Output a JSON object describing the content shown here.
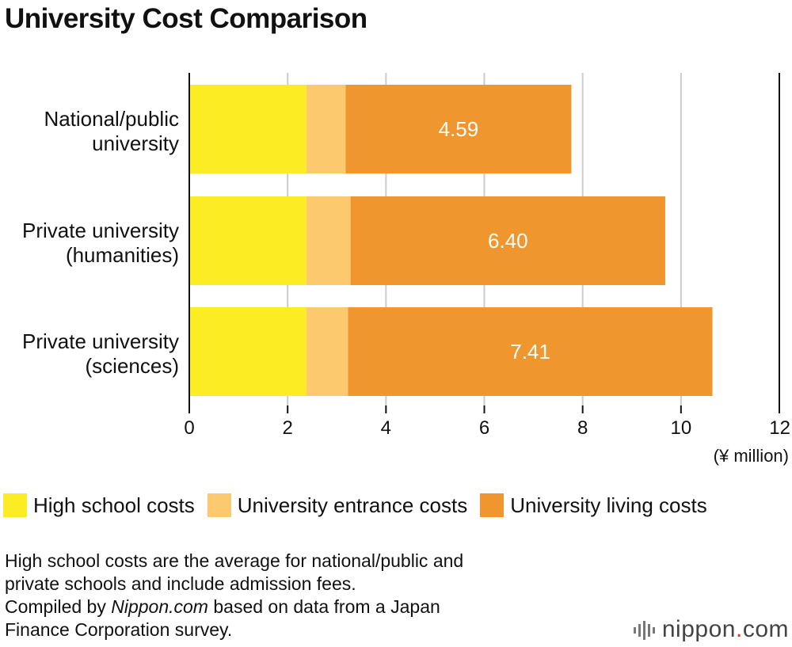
{
  "title": "University Cost Comparison",
  "chart_data": {
    "type": "bar",
    "orientation": "horizontal",
    "stacked": true,
    "categories": [
      [
        "National/public",
        "university"
      ],
      [
        "Private university",
        "(humanities)"
      ],
      [
        "Private university",
        "(sciences)"
      ]
    ],
    "series": [
      {
        "name": "High school costs",
        "color": "#fbec24",
        "values": [
          2.38,
          2.38,
          2.38
        ]
      },
      {
        "name": "University entrance costs",
        "color": "#fdc96e",
        "values": [
          0.8,
          0.9,
          0.85
        ]
      },
      {
        "name": "University living costs",
        "color": "#f0962f",
        "values": [
          4.59,
          6.4,
          7.41
        ],
        "data_labels": [
          "4.59",
          "6.40",
          "7.41"
        ]
      }
    ],
    "x_ticks": [
      "0",
      "2",
      "4",
      "6",
      "8",
      "10",
      "12"
    ],
    "xlim": [
      0,
      12
    ],
    "xlabel": "(¥ million)",
    "grid": true,
    "legend": "bottom"
  },
  "note": {
    "line1": "High school costs are the average for national/public and",
    "line2": "private schools and include admission fees.",
    "compiled_prefix": "Compiled by ",
    "compiled_source": "Nippon.com",
    "compiled_suffix": " based on data from a Japan",
    "line4": "Finance Corporation survey."
  },
  "brand": {
    "name": "nippon",
    "dot": ".",
    "tld": "com"
  }
}
